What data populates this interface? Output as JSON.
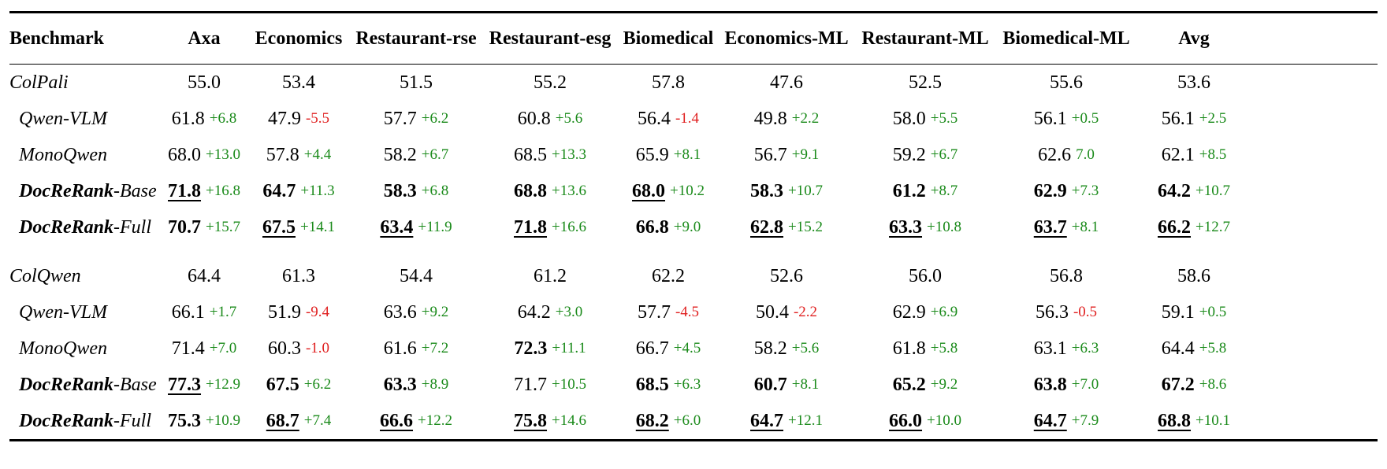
{
  "columns": [
    "Benchmark",
    "Axa",
    "Economics",
    "Restaurant-rse",
    "Restaurant-esg",
    "Biomedical",
    "Economics-ML",
    "Restaurant-ML",
    "Biomedical-ML",
    "Avg"
  ],
  "colors": {
    "positive": "#1a8a1a",
    "negative": "#e02020"
  },
  "groups": [
    {
      "rows": [
        {
          "name": "ColPali",
          "name_suffix": "",
          "indent": false,
          "name_bold": false,
          "cells": [
            {
              "v": "55.0"
            },
            {
              "v": "53.4"
            },
            {
              "v": "51.5"
            },
            {
              "v": "55.2"
            },
            {
              "v": "57.8"
            },
            {
              "v": "47.6"
            },
            {
              "v": "52.5"
            },
            {
              "v": "55.6"
            },
            {
              "v": "53.6"
            }
          ]
        },
        {
          "name": "Qwen-VLM",
          "name_suffix": "",
          "indent": true,
          "name_bold": false,
          "cells": [
            {
              "v": "61.8",
              "d": "+6.8",
              "s": "pos"
            },
            {
              "v": "47.9",
              "d": "-5.5",
              "s": "neg"
            },
            {
              "v": "57.7",
              "d": "+6.2",
              "s": "pos"
            },
            {
              "v": "60.8",
              "d": "+5.6",
              "s": "pos"
            },
            {
              "v": "56.4",
              "d": "-1.4",
              "s": "neg"
            },
            {
              "v": "49.8",
              "d": "+2.2",
              "s": "pos"
            },
            {
              "v": "58.0",
              "d": "+5.5",
              "s": "pos"
            },
            {
              "v": "56.1",
              "d": "+0.5",
              "s": "pos"
            },
            {
              "v": "56.1",
              "d": "+2.5",
              "s": "pos"
            }
          ]
        },
        {
          "name": "MonoQwen",
          "name_suffix": "",
          "indent": true,
          "name_bold": false,
          "cells": [
            {
              "v": "68.0",
              "d": "+13.0",
              "s": "pos"
            },
            {
              "v": "57.8",
              "d": "+4.4",
              "s": "pos"
            },
            {
              "v": "58.2",
              "d": "+6.7",
              "s": "pos"
            },
            {
              "v": "68.5",
              "d": "+13.3",
              "s": "pos"
            },
            {
              "v": "65.9",
              "d": "+8.1",
              "s": "pos"
            },
            {
              "v": "56.7",
              "d": "+9.1",
              "s": "pos"
            },
            {
              "v": "59.2",
              "d": "+6.7",
              "s": "pos"
            },
            {
              "v": "62.6",
              "d": "7.0",
              "s": "pos"
            },
            {
              "v": "62.1",
              "d": "+8.5",
              "s": "pos"
            }
          ]
        },
        {
          "name": "DocReRank",
          "name_suffix": "-Base",
          "indent": true,
          "name_bold": true,
          "cells": [
            {
              "v": "71.8",
              "d": "+16.8",
              "s": "pos",
              "b": true,
              "u": true
            },
            {
              "v": "64.7",
              "d": "+11.3",
              "s": "pos",
              "b": true
            },
            {
              "v": "58.3",
              "d": "+6.8",
              "s": "pos",
              "b": true
            },
            {
              "v": "68.8",
              "d": "+13.6",
              "s": "pos",
              "b": true
            },
            {
              "v": "68.0",
              "d": "+10.2",
              "s": "pos",
              "b": true,
              "u": true
            },
            {
              "v": "58.3",
              "d": "+10.7",
              "s": "pos",
              "b": true
            },
            {
              "v": "61.2",
              "d": "+8.7",
              "s": "pos",
              "b": true
            },
            {
              "v": "62.9",
              "d": "+7.3",
              "s": "pos",
              "b": true
            },
            {
              "v": "64.2",
              "d": "+10.7",
              "s": "pos",
              "b": true
            }
          ]
        },
        {
          "name": "DocReRank",
          "name_suffix": "-Full",
          "indent": true,
          "name_bold": true,
          "cells": [
            {
              "v": "70.7",
              "d": "+15.7",
              "s": "pos",
              "b": true
            },
            {
              "v": "67.5",
              "d": "+14.1",
              "s": "pos",
              "b": true,
              "u": true
            },
            {
              "v": "63.4",
              "d": "+11.9",
              "s": "pos",
              "b": true,
              "u": true
            },
            {
              "v": "71.8",
              "d": "+16.6",
              "s": "pos",
              "b": true,
              "u": true
            },
            {
              "v": "66.8",
              "d": "+9.0",
              "s": "pos",
              "b": true
            },
            {
              "v": "62.8",
              "d": "+15.2",
              "s": "pos",
              "b": true,
              "u": true
            },
            {
              "v": "63.3",
              "d": "+10.8",
              "s": "pos",
              "b": true,
              "u": true
            },
            {
              "v": "63.7",
              "d": "+8.1",
              "s": "pos",
              "b": true,
              "u": true
            },
            {
              "v": "66.2",
              "d": "+12.7",
              "s": "pos",
              "b": true,
              "u": true
            }
          ]
        }
      ]
    },
    {
      "rows": [
        {
          "name": "ColQwen",
          "name_suffix": "",
          "indent": false,
          "name_bold": false,
          "cells": [
            {
              "v": "64.4"
            },
            {
              "v": "61.3"
            },
            {
              "v": "54.4"
            },
            {
              "v": "61.2"
            },
            {
              "v": "62.2"
            },
            {
              "v": "52.6"
            },
            {
              "v": "56.0"
            },
            {
              "v": "56.8"
            },
            {
              "v": "58.6"
            }
          ]
        },
        {
          "name": "Qwen-VLM",
          "name_suffix": "",
          "indent": true,
          "name_bold": false,
          "cells": [
            {
              "v": "66.1",
              "d": "+1.7",
              "s": "pos"
            },
            {
              "v": "51.9",
              "d": "-9.4",
              "s": "neg"
            },
            {
              "v": "63.6",
              "d": "+9.2",
              "s": "pos"
            },
            {
              "v": "64.2",
              "d": "+3.0",
              "s": "pos"
            },
            {
              "v": "57.7",
              "d": "-4.5",
              "s": "neg"
            },
            {
              "v": "50.4",
              "d": "-2.2",
              "s": "neg"
            },
            {
              "v": "62.9",
              "d": "+6.9",
              "s": "pos"
            },
            {
              "v": "56.3",
              "d": "-0.5",
              "s": "neg"
            },
            {
              "v": "59.1",
              "d": "+0.5",
              "s": "pos"
            }
          ]
        },
        {
          "name": "MonoQwen",
          "name_suffix": "",
          "indent": true,
          "name_bold": false,
          "cells": [
            {
              "v": "71.4",
              "d": "+7.0",
              "s": "pos"
            },
            {
              "v": "60.3",
              "d": "-1.0",
              "s": "neg"
            },
            {
              "v": "61.6",
              "d": "+7.2",
              "s": "pos"
            },
            {
              "v": "72.3",
              "d": "+11.1",
              "s": "pos",
              "b": true
            },
            {
              "v": "66.7",
              "d": "+4.5",
              "s": "pos"
            },
            {
              "v": "58.2",
              "d": "+5.6",
              "s": "pos"
            },
            {
              "v": "61.8",
              "d": "+5.8",
              "s": "pos"
            },
            {
              "v": "63.1",
              "d": "+6.3",
              "s": "pos"
            },
            {
              "v": "64.4",
              "d": "+5.8",
              "s": "pos"
            }
          ]
        },
        {
          "name": "DocReRank",
          "name_suffix": "-Base",
          "indent": true,
          "name_bold": true,
          "cells": [
            {
              "v": "77.3",
              "d": "+12.9",
              "s": "pos",
              "b": true,
              "u": true
            },
            {
              "v": "67.5",
              "d": "+6.2",
              "s": "pos",
              "b": true
            },
            {
              "v": "63.3",
              "d": "+8.9",
              "s": "pos",
              "b": true
            },
            {
              "v": "71.7",
              "d": "+10.5",
              "s": "pos"
            },
            {
              "v": "68.5",
              "d": "+6.3",
              "s": "pos",
              "b": true
            },
            {
              "v": "60.7",
              "d": "+8.1",
              "s": "pos",
              "b": true
            },
            {
              "v": "65.2",
              "d": "+9.2",
              "s": "pos",
              "b": true
            },
            {
              "v": "63.8",
              "d": "+7.0",
              "s": "pos",
              "b": true
            },
            {
              "v": "67.2",
              "d": "+8.6",
              "s": "pos",
              "b": true
            }
          ]
        },
        {
          "name": "DocReRank",
          "name_suffix": "-Full",
          "indent": true,
          "name_bold": true,
          "cells": [
            {
              "v": "75.3",
              "d": "+10.9",
              "s": "pos",
              "b": true
            },
            {
              "v": "68.7",
              "d": "+7.4",
              "s": "pos",
              "b": true,
              "u": true
            },
            {
              "v": "66.6",
              "d": "+12.2",
              "s": "pos",
              "b": true,
              "u": true
            },
            {
              "v": "75.8",
              "d": "+14.6",
              "s": "pos",
              "b": true,
              "u": true
            },
            {
              "v": "68.2",
              "d": "+6.0",
              "s": "pos",
              "b": true,
              "u": true
            },
            {
              "v": "64.7",
              "d": "+12.1",
              "s": "pos",
              "b": true,
              "u": true
            },
            {
              "v": "66.0",
              "d": "+10.0",
              "s": "pos",
              "b": true,
              "u": true
            },
            {
              "v": "64.7",
              "d": "+7.9",
              "s": "pos",
              "b": true,
              "u": true
            },
            {
              "v": "68.8",
              "d": "+10.1",
              "s": "pos",
              "b": true,
              "u": true
            }
          ]
        }
      ]
    }
  ]
}
